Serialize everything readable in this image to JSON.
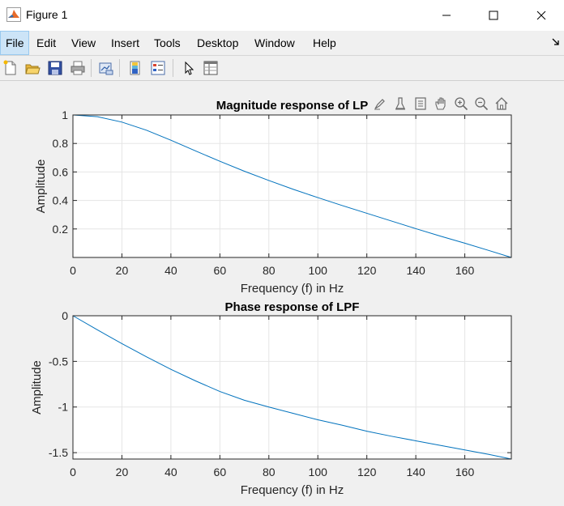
{
  "window": {
    "title": "Figure 1"
  },
  "menu": [
    "File",
    "Edit",
    "View",
    "Insert",
    "Tools",
    "Desktop",
    "Window",
    "Help"
  ],
  "toolbar_icons": [
    "new-figure-icon",
    "open-file-icon",
    "save-icon",
    "print-icon",
    "link-plot-icon",
    "colorbar-icon",
    "legend-icon",
    "edit-plot-arrow-icon",
    "property-inspector-icon"
  ],
  "axes_toolbar_icons": [
    "brush-icon",
    "data-tips-icon",
    "restore-view-icon",
    "pan-icon",
    "zoom-in-icon",
    "zoom-out-icon",
    "home-icon"
  ],
  "colors": {
    "line": "#0072bd",
    "grid": "#e5e5e5"
  },
  "chart_data": [
    {
      "type": "line",
      "title": "Magnitude response of LP",
      "xlabel": "Frequency (f) in Hz",
      "ylabel": "Amplitude",
      "xlim": [
        0,
        179
      ],
      "ylim": [
        0,
        1
      ],
      "xticks": [
        0,
        20,
        40,
        60,
        80,
        100,
        120,
        140,
        160
      ],
      "yticks": [
        0.2,
        0.4,
        0.6,
        0.8,
        1
      ],
      "ytick_labels": [
        "0.2",
        "0.4",
        "0.6",
        "0.8",
        "1"
      ],
      "grid": true,
      "x": [
        0,
        10,
        20,
        30,
        40,
        50,
        60,
        70,
        80,
        90,
        100,
        110,
        120,
        130,
        140,
        150,
        160,
        170,
        179
      ],
      "y": [
        1.0,
        0.988,
        0.95,
        0.893,
        0.823,
        0.748,
        0.675,
        0.605,
        0.54,
        0.478,
        0.42,
        0.364,
        0.31,
        0.256,
        0.202,
        0.15,
        0.1,
        0.048,
        0.0
      ]
    },
    {
      "type": "line",
      "title": "Phase response of LPF",
      "xlabel": "Frequency (f) in Hz",
      "ylabel": "Amplitude",
      "xlim": [
        0,
        179
      ],
      "ylim": [
        -1.57,
        0
      ],
      "xticks": [
        0,
        20,
        40,
        60,
        80,
        100,
        120,
        140,
        160
      ],
      "yticks": [
        -1.5,
        -1,
        -0.5,
        0
      ],
      "ytick_labels": [
        "-1.5",
        "-1",
        "-0.5",
        "0"
      ],
      "grid": true,
      "x": [
        0,
        10,
        20,
        30,
        40,
        50,
        60,
        70,
        80,
        90,
        100,
        110,
        120,
        130,
        140,
        150,
        160,
        170,
        179
      ],
      "y": [
        0,
        -0.155,
        -0.305,
        -0.45,
        -0.587,
        -0.713,
        -0.83,
        -0.926,
        -1.0,
        -1.07,
        -1.14,
        -1.2,
        -1.265,
        -1.32,
        -1.37,
        -1.42,
        -1.47,
        -1.52,
        -1.57
      ]
    }
  ]
}
